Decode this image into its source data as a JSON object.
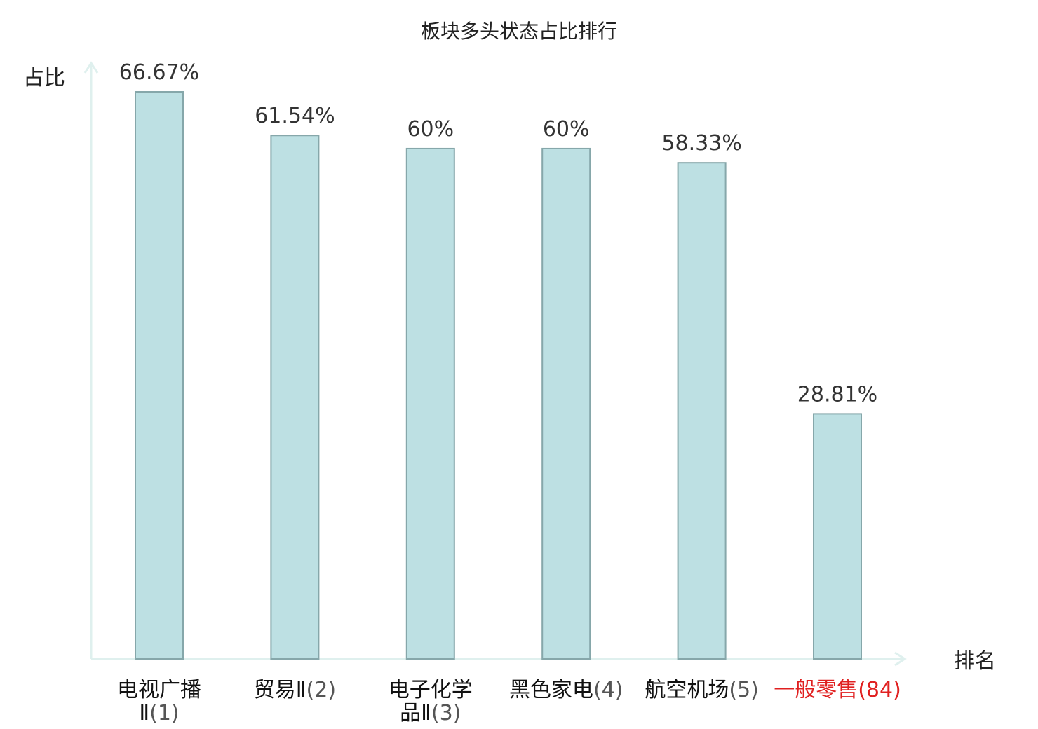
{
  "chart_data": {
    "type": "bar",
    "title": "板块多头状态占比排行",
    "ylabel": "占比",
    "xlabel": "排名",
    "ylim": [
      0,
      70
    ],
    "grid": false,
    "legend": false,
    "categories": [
      {
        "name_lines": [
          "电视广播",
          "Ⅱ"
        ],
        "rank": "(1)",
        "highlight": false
      },
      {
        "name_lines": [
          "贸易Ⅱ"
        ],
        "rank": "(2)",
        "highlight": false
      },
      {
        "name_lines": [
          "电子化学",
          "品Ⅱ"
        ],
        "rank": "(3)",
        "highlight": false
      },
      {
        "name_lines": [
          "黑色家电"
        ],
        "rank": "(4)",
        "highlight": false
      },
      {
        "name_lines": [
          "航空机场"
        ],
        "rank": "(5)",
        "highlight": false
      },
      {
        "name_lines": [
          "一般零售"
        ],
        "rank": "(84)",
        "highlight": true
      }
    ],
    "values": [
      66.67,
      61.54,
      60,
      60,
      58.33,
      28.81
    ],
    "value_labels": [
      "66.67%",
      "61.54%",
      "60%",
      "60%",
      "58.33%",
      "28.81%"
    ]
  },
  "colors": {
    "bar_fill": "#bde0e3",
    "bar_stroke": "#86a7aa",
    "axis": "#dff0ee",
    "highlight_text": "#e02020",
    "text": "#222222",
    "rank_text": "#555555"
  }
}
